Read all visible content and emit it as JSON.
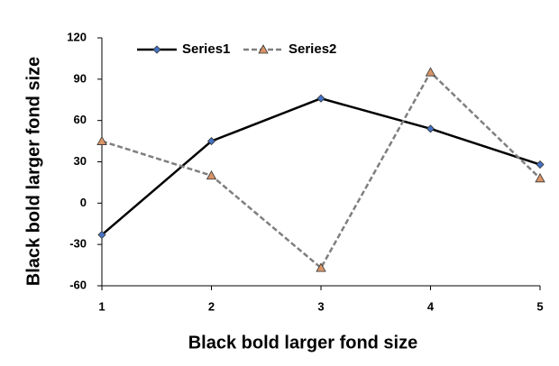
{
  "chart_data": {
    "type": "line",
    "x_label": "Black bold larger fond size",
    "y_label": "Black bold larger fond size",
    "x": [
      1,
      2,
      3,
      4,
      5
    ],
    "series": [
      {
        "name": "Series1",
        "color": "#000000",
        "marker_color": "#4472c4",
        "marker": "diamond",
        "dashed": false,
        "values": [
          -23,
          45,
          76,
          54,
          28
        ]
      },
      {
        "name": "Series2",
        "color": "#7f7f7f",
        "marker_color": "#d99468",
        "marker": "triangle",
        "dashed": true,
        "values": [
          45,
          20,
          -47,
          95,
          18
        ]
      }
    ],
    "xlim": [
      1,
      5
    ],
    "xticks": [
      1,
      2,
      3,
      4,
      5
    ],
    "ylim": [
      -60,
      120
    ],
    "yticks": [
      -60,
      -30,
      0,
      30,
      60,
      90,
      120
    ],
    "legend": "top",
    "grid": false
  }
}
